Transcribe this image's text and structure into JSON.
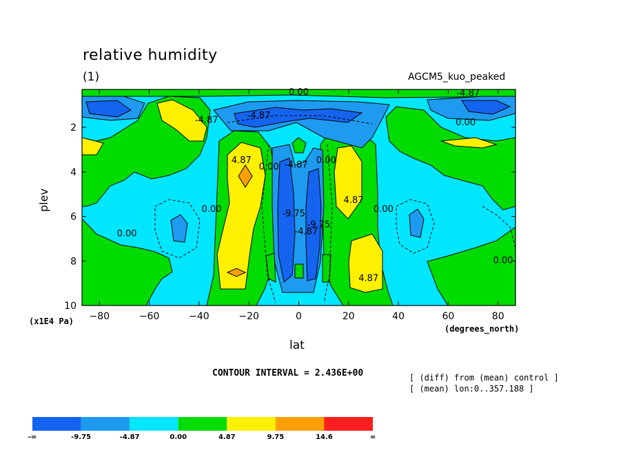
{
  "chart_data": {
    "type": "heatmap",
    "title": "relative humidity",
    "subtitle": "(1)",
    "case_label": "AGCM5_kuo_peaked",
    "xlabel": "lat",
    "x_units": "(degrees_north)",
    "ylabel": "plev",
    "y_units": "(x1E4 Pa)",
    "xlim": [
      -87,
      87
    ],
    "ylim": [
      10,
      0.3
    ],
    "x_ticks": [
      -80,
      -60,
      -40,
      -20,
      0,
      20,
      40,
      60,
      80
    ],
    "y_ticks": [
      2,
      4,
      6,
      8,
      10
    ],
    "contour_interval_text": "CONTOUR INTERVAL = 2.436E+00",
    "notes": [
      "[ (diff) from (mean) control ]",
      "[ (mean) lon:0..357.188 ]"
    ],
    "colorbar": {
      "labels": [
        "-∞",
        "-9.75",
        "-4.87",
        "0.00",
        "4.87",
        "9.75",
        "14.6",
        "∞"
      ],
      "colors": [
        "#1464F0",
        "#1E9BF0",
        "#00E6FF",
        "#00DC00",
        "#FFF000",
        "#FFA000",
        "#FF1E1E"
      ]
    },
    "contour_labels": [
      {
        "text": "0.00",
        "x": 0,
        "y": 0.55
      },
      {
        "text": "-4.87",
        "x": 68,
        "y": 0.6
      },
      {
        "text": "-4.87",
        "x": -16,
        "y": 1.6
      },
      {
        "text": "0.00",
        "x": 67,
        "y": 1.9
      },
      {
        "text": "-4.87",
        "x": -37,
        "y": 1.8
      },
      {
        "text": "4.87",
        "x": -23,
        "y": 3.6
      },
      {
        "text": "0.00",
        "x": -12,
        "y": 3.9
      },
      {
        "text": "-4.87",
        "x": -1,
        "y": 3.8
      },
      {
        "text": "0.00",
        "x": 11,
        "y": 3.6
      },
      {
        "text": "4.87",
        "x": 22,
        "y": 5.4
      },
      {
        "text": "0.00",
        "x": -35,
        "y": 5.8
      },
      {
        "text": "0.00",
        "x": 34,
        "y": 5.8
      },
      {
        "text": "-9.75",
        "x": -2,
        "y": 6.0
      },
      {
        "text": "-4.87",
        "x": 3,
        "y": 6.8
      },
      {
        "text": "-9.75",
        "x": 8,
        "y": 6.5
      },
      {
        "text": "0.00",
        "x": -69,
        "y": 6.9
      },
      {
        "text": "4.87",
        "x": 28,
        "y": 8.9
      },
      {
        "text": "0.00",
        "x": 82,
        "y": 8.1
      }
    ]
  }
}
